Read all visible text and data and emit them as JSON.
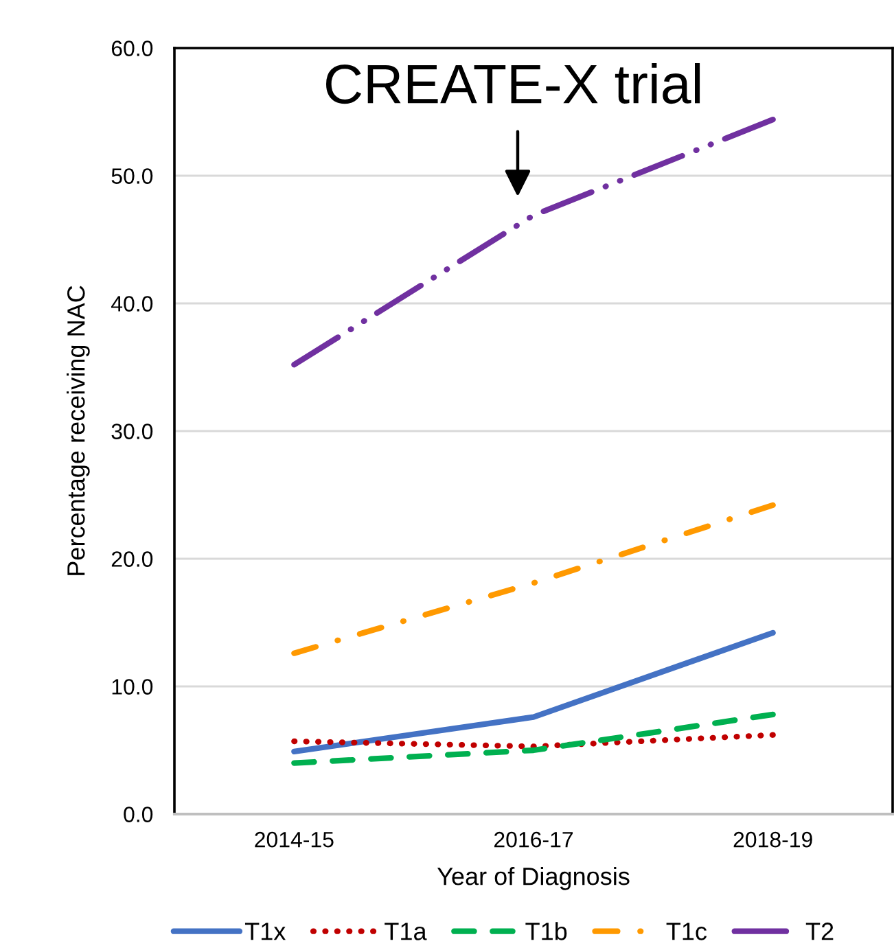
{
  "chart_data": {
    "type": "line",
    "categories": [
      "2014-15",
      "2016-17",
      "2018-19"
    ],
    "xlabel": "Year of Diagnosis",
    "ylabel": "Percentage receiving NAC",
    "ylim": [
      0,
      60
    ],
    "yticks": [
      {
        "value": 0,
        "label": "0.0"
      },
      {
        "value": 10,
        "label": "10.0"
      },
      {
        "value": 20,
        "label": "20.0"
      },
      {
        "value": 30,
        "label": "30.0"
      },
      {
        "value": 40,
        "label": "40.0"
      },
      {
        "value": 50,
        "label": "50.0"
      },
      {
        "value": 60,
        "label": "60.0"
      }
    ],
    "grid": "y",
    "legend": "bottom",
    "annotations": [
      "CREATE-X trial"
    ],
    "series": [
      {
        "name": "T1x",
        "color": "#4472c4",
        "line_style": "solid",
        "values": [
          4.9,
          7.6,
          14.2
        ]
      },
      {
        "name": "T1a",
        "color": "#c00000",
        "line_style": "dotted",
        "values": [
          5.7,
          5.3,
          6.2
        ]
      },
      {
        "name": "T1b",
        "color": "#00b050",
        "line_style": "dashed",
        "values": [
          4.0,
          5.0,
          7.8
        ]
      },
      {
        "name": "T1c",
        "color": "#ff9900",
        "line_style": "dashdot",
        "values": [
          12.6,
          18.1,
          24.2
        ]
      },
      {
        "name": "T2",
        "color": "#7030a0",
        "line_style": "dashdotdot",
        "values": [
          35.2,
          46.9,
          54.4
        ]
      }
    ]
  }
}
